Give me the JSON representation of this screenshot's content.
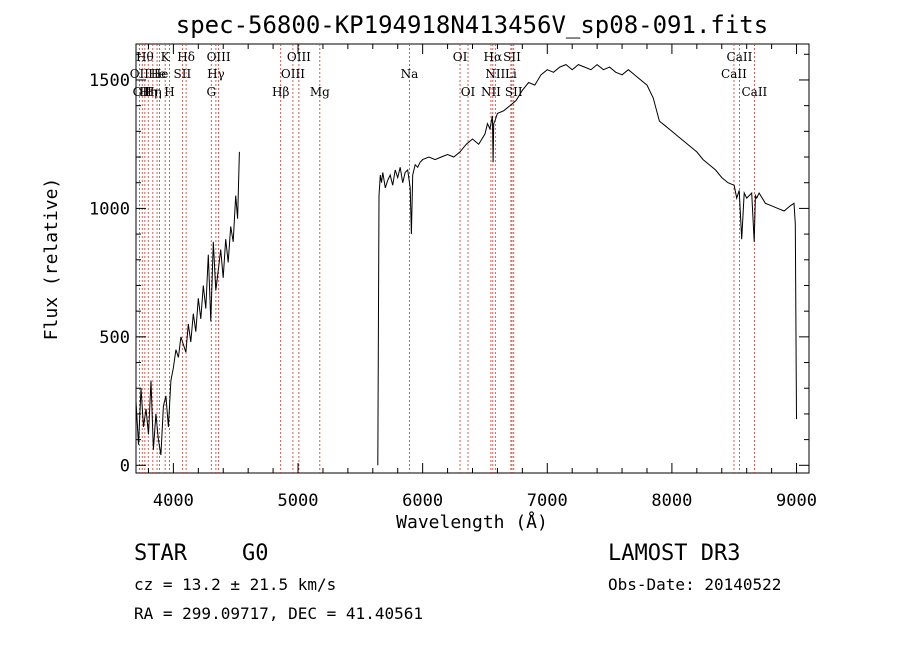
{
  "chart_data": {
    "type": "line",
    "title": "spec-56800-KP194918N413456V_sp08-091.fits",
    "xlabel": "Wavelength (Å)",
    "ylabel": "Flux (relative)",
    "xlim": [
      3700,
      9100
    ],
    "ylim": [
      -30,
      1640
    ],
    "x_ticks": [
      4000,
      5000,
      6000,
      7000,
      8000,
      9000
    ],
    "y_ticks": [
      0,
      500,
      1000,
      1500
    ],
    "x_tick_labels": [
      "4000",
      "5000",
      "6000",
      "7000",
      "8000",
      "9000"
    ],
    "y_tick_labels": [
      "0",
      "500",
      "1000",
      "1500"
    ],
    "series": [
      {
        "name": "flux",
        "segments": [
          {
            "x": [
              3700,
              3720,
              3740,
              3760,
              3780,
              3800,
              3820,
              3840,
              3860,
              3880,
              3900,
              3920,
              3940,
              3960,
              3980,
              4000,
              4020,
              4040,
              4060,
              4080,
              4100,
              4120,
              4140,
              4160,
              4180,
              4200,
              4220,
              4240,
              4260,
              4280,
              4300,
              4320,
              4340,
              4360,
              4380,
              4400,
              4420,
              4440,
              4460,
              4480,
              4500,
              4515,
              4530
            ],
            "y": [
              250,
              80,
              300,
              150,
              220,
              120,
              330,
              60,
              200,
              100,
              40,
              230,
              270,
              150,
              330,
              380,
              450,
              420,
              500,
              470,
              440,
              550,
              480,
              590,
              520,
              650,
              570,
              700,
              610,
              820,
              560,
              870,
              680,
              760,
              840,
              730,
              880,
              790,
              930,
              870,
              1050,
              960,
              1220
            ]
          },
          {
            "x": [
              5640,
              5650,
              5660,
              5670,
              5680,
              5700,
              5720,
              5740,
              5760,
              5780,
              5800,
              5820,
              5840,
              5860,
              5880,
              5900,
              5910,
              5920,
              5940,
              5960,
              5980,
              6000,
              6050,
              6100,
              6150,
              6200,
              6250,
              6300,
              6350,
              6400,
              6450,
              6500,
              6520,
              6540,
              6560,
              6565,
              6570,
              6580,
              6600,
              6650,
              6700,
              6750,
              6800,
              6850,
              6900,
              6950,
              7000,
              7050,
              7100,
              7150,
              7200,
              7250,
              7300,
              7350,
              7400,
              7450,
              7500,
              7550,
              7600,
              7650,
              7700,
              7750,
              7800,
              7850,
              7900,
              7950,
              8000,
              8050,
              8100,
              8150,
              8200,
              8250,
              8300,
              8350,
              8400,
              8450,
              8500,
              8520,
              8540,
              8560,
              8580,
              8600,
              8620,
              8640,
              8660,
              8670,
              8680,
              8700,
              8750,
              8800,
              8850,
              8900,
              8950,
              8980,
              8990,
              9000
            ],
            "y": [
              0,
              1050,
              1130,
              1100,
              1140,
              1080,
              1110,
              1130,
              1090,
              1150,
              1120,
              1160,
              1100,
              1140,
              1150,
              1080,
              900,
              1130,
              1170,
              1160,
              1180,
              1190,
              1200,
              1190,
              1200,
              1210,
              1200,
              1220,
              1250,
              1270,
              1250,
              1290,
              1330,
              1310,
              1360,
              1180,
              1330,
              1340,
              1370,
              1380,
              1400,
              1420,
              1460,
              1490,
              1480,
              1520,
              1540,
              1530,
              1550,
              1560,
              1540,
              1560,
              1550,
              1540,
              1560,
              1540,
              1550,
              1530,
              1520,
              1540,
              1520,
              1500,
              1480,
              1430,
              1340,
              1320,
              1300,
              1280,
              1260,
              1240,
              1220,
              1190,
              1170,
              1150,
              1120,
              1100,
              1090,
              1040,
              1070,
              880,
              1060,
              1040,
              1050,
              1060,
              870,
              1050,
              1040,
              1060,
              1020,
              1010,
              1000,
              990,
              1010,
              1020,
              940,
              180
            ]
          }
        ]
      }
    ],
    "emission_lines": [
      {
        "x": 3727,
        "label": "OII",
        "row": 2
      },
      {
        "x": 3750,
        "label": "OII",
        "row": 3
      },
      {
        "x": 3771,
        "label": "Hθ",
        "row": 1
      },
      {
        "x": 3798,
        "label": "Hη",
        "row": 3
      },
      {
        "x": 3835,
        "label": "Hη",
        "row": 3
      },
      {
        "x": 3869,
        "label": "He",
        "row": 2
      },
      {
        "x": 3889,
        "label": "He",
        "row": 2
      },
      {
        "x": 3934,
        "label": "K",
        "row": 1
      },
      {
        "x": 3969,
        "label": "H",
        "row": 3
      },
      {
        "x": 4072,
        "label": "SII",
        "row": 2
      },
      {
        "x": 4102,
        "label": "Hδ",
        "row": 1
      },
      {
        "x": 4304,
        "label": "G",
        "row": 3
      },
      {
        "x": 4341,
        "label": "Hγ",
        "row": 2
      },
      {
        "x": 4363,
        "label": "OIII",
        "row": 1
      },
      {
        "x": 4861,
        "label": "Hβ",
        "row": 3
      },
      {
        "x": 4959,
        "label": "OIII",
        "row": 2
      },
      {
        "x": 5007,
        "label": "OIII",
        "row": 1
      },
      {
        "x": 5175,
        "label": "Mg",
        "row": 3
      },
      {
        "x": 5894,
        "label": "Na",
        "row": 2
      },
      {
        "x": 6300,
        "label": "OI",
        "row": 1
      },
      {
        "x": 6364,
        "label": "OI",
        "row": 3
      },
      {
        "x": 6548,
        "label": "NII",
        "row": 3
      },
      {
        "x": 6563,
        "label": "Hα",
        "row": 1
      },
      {
        "x": 6583,
        "label": "NII",
        "row": 2
      },
      {
        "x": 6708,
        "label": "Li",
        "row": 2
      },
      {
        "x": 6717,
        "label": "SII",
        "row": 1
      },
      {
        "x": 6731,
        "label": "SII",
        "row": 3
      },
      {
        "x": 8498,
        "label": "CaII",
        "row": 2
      },
      {
        "x": 8542,
        "label": "CaII",
        "row": 1
      },
      {
        "x": 8662,
        "label": "CaII",
        "row": 3
      }
    ]
  },
  "info": {
    "object_type": "STAR",
    "subclass": "G0",
    "survey": "LAMOST DR3",
    "redshift": "cz = 13.2 ± 21.5 km/s",
    "obs_date": "Obs-Date: 20140522",
    "coords": "RA = 299.09717, DEC =  41.40561"
  },
  "colors": {
    "line": "#000000",
    "marker": "#c0392b",
    "background": "#ffffff"
  }
}
